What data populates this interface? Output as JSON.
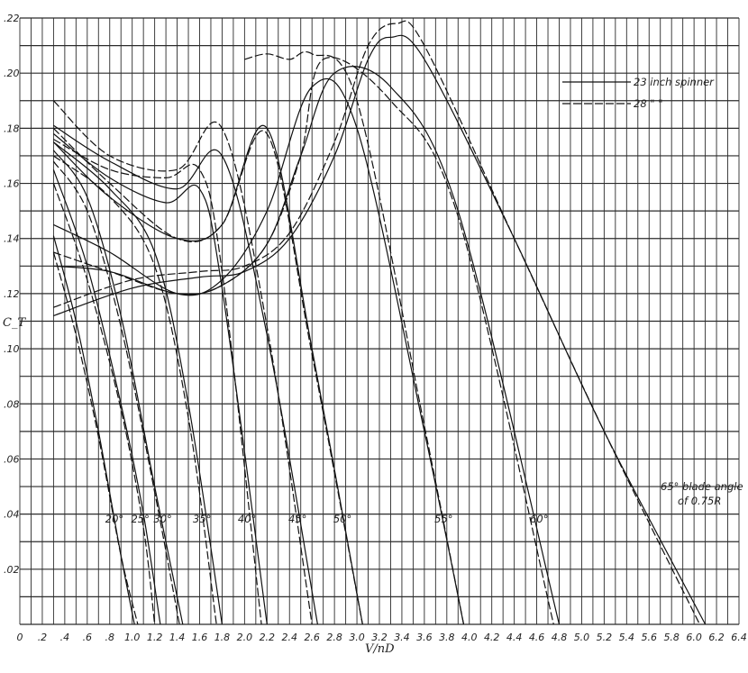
{
  "chart_data": {
    "type": "line",
    "xlabel": "V/nD",
    "ylabel": "C_T",
    "xlim": [
      0,
      6.4
    ],
    "ylim": [
      0,
      0.22
    ],
    "x_ticks": [
      "0",
      ".2",
      ".4",
      ".6",
      ".8",
      "1.0",
      "1.2",
      "1.4",
      "1.6",
      "1.8",
      "2.0",
      "2.2",
      "2.4",
      "2.6",
      "2.8",
      "3.0",
      "3.2",
      "3.4",
      "3.6",
      "3.8",
      "4.0",
      "4.2",
      "4.4",
      "4.6",
      "4.8",
      "5.0",
      "5.2",
      "5.4",
      "5.6",
      "5.8",
      "6.0",
      "6.2",
      "6.4"
    ],
    "y_ticks": [
      ".02",
      ".04",
      ".06",
      ".08",
      ".10",
      ".12",
      ".14",
      ".16",
      ".18",
      ".20",
      ".22"
    ],
    "y_tick_values": [
      0.02,
      0.04,
      0.06,
      0.08,
      0.1,
      0.12,
      0.14,
      0.16,
      0.18,
      0.2,
      0.22
    ],
    "grid": true,
    "legend": [
      {
        "label": "23 inch spinner",
        "style": "solid"
      },
      {
        "label": "28  \"   \"",
        "style": "dashed"
      }
    ],
    "legend_position": "top-right",
    "annotations": {
      "blade_angle_note": "65° blade angle",
      "blade_angle_note2": "of 0.75R"
    },
    "series": [
      {
        "name": "20°",
        "spinner": "23 inch",
        "style": "solid",
        "x": [
          0.3,
          0.5,
          0.7,
          0.9,
          1.02
        ],
        "y": [
          0.141,
          0.11,
          0.07,
          0.025,
          0.0
        ]
      },
      {
        "name": "20°",
        "spinner": "28 inch",
        "style": "dashed",
        "x": [
          0.3,
          0.5,
          0.7,
          0.9,
          1.05
        ],
        "y": [
          0.135,
          0.105,
          0.068,
          0.025,
          0.0
        ]
      },
      {
        "name": "25°",
        "spinner": "23 inch",
        "style": "solid",
        "x": [
          0.3,
          0.6,
          0.9,
          1.1,
          1.25
        ],
        "y": [
          0.165,
          0.13,
          0.08,
          0.04,
          0.0
        ]
      },
      {
        "name": "25°",
        "spinner": "28 inch",
        "style": "dashed",
        "x": [
          0.3,
          0.6,
          0.9,
          1.1,
          1.2
        ],
        "y": [
          0.16,
          0.125,
          0.078,
          0.035,
          0.0
        ]
      },
      {
        "name": "30°",
        "spinner": "23 inch",
        "style": "solid",
        "x": [
          0.3,
          0.6,
          0.9,
          1.2,
          1.45
        ],
        "y": [
          0.172,
          0.155,
          0.112,
          0.05,
          0.0
        ]
      },
      {
        "name": "30°",
        "spinner": "28 inch",
        "style": "dashed",
        "x": [
          0.3,
          0.6,
          0.9,
          1.2,
          1.42
        ],
        "y": [
          0.168,
          0.15,
          0.108,
          0.048,
          0.0
        ]
      },
      {
        "name": "35°",
        "spinner": "23 inch",
        "style": "solid",
        "x": [
          0.3,
          0.8,
          1.2,
          1.5,
          1.8
        ],
        "y": [
          0.175,
          0.158,
          0.135,
          0.08,
          0.0
        ]
      },
      {
        "name": "35°",
        "spinner": "28 inch",
        "style": "dashed",
        "x": [
          0.3,
          0.8,
          1.2,
          1.5,
          1.75
        ],
        "y": [
          0.17,
          0.155,
          0.13,
          0.075,
          0.0
        ]
      },
      {
        "name": "40°",
        "spinner": "23 inch",
        "style": "solid",
        "x": [
          0.3,
          0.8,
          1.3,
          1.6,
          1.8,
          2.2
        ],
        "y": [
          0.178,
          0.162,
          0.153,
          0.158,
          0.122,
          0.0
        ]
      },
      {
        "name": "40°",
        "spinner": "28 inch",
        "style": "dashed",
        "x": [
          0.3,
          0.8,
          1.3,
          1.6,
          1.8,
          2.15
        ],
        "y": [
          0.176,
          0.165,
          0.162,
          0.165,
          0.128,
          0.0
        ]
      },
      {
        "name": "45°",
        "spinner": "23 inch",
        "style": "solid",
        "x": [
          0.3,
          0.8,
          1.4,
          1.8,
          2.2,
          2.65
        ],
        "y": [
          0.181,
          0.168,
          0.158,
          0.17,
          0.105,
          0.0
        ]
      },
      {
        "name": "45°",
        "spinner": "28 inch",
        "style": "dashed",
        "x": [
          0.3,
          0.8,
          1.4,
          1.8,
          2.2,
          2.6
        ],
        "y": [
          0.19,
          0.17,
          0.165,
          0.18,
          0.108,
          0.0
        ]
      },
      {
        "name": "50°",
        "spinner": "23 inch",
        "style": "solid",
        "x": [
          0.3,
          0.8,
          1.4,
          1.8,
          2.2,
          2.6,
          3.05
        ],
        "y": [
          0.175,
          0.155,
          0.14,
          0.145,
          0.18,
          0.1,
          0.0
        ]
      },
      {
        "name": "50°",
        "spinner": "28 inch",
        "style": "dashed",
        "x": [
          0.3,
          0.8,
          1.4,
          1.8,
          2.2,
          2.6,
          3.05
        ],
        "y": [
          0.18,
          0.16,
          0.14,
          0.145,
          0.178,
          0.098,
          0.0
        ]
      },
      {
        "name": "55°",
        "spinner": "23 inch",
        "style": "solid",
        "x": [
          0.3,
          0.8,
          1.4,
          1.8,
          2.2,
          2.6,
          3.0,
          3.6,
          3.95
        ],
        "y": [
          0.145,
          0.135,
          0.12,
          0.125,
          0.15,
          0.195,
          0.18,
          0.07,
          0.0
        ]
      },
      {
        "name": "55°",
        "spinner": "28 inch",
        "style": "dashed",
        "x": [
          2.0,
          2.2,
          2.4,
          2.6,
          3.0,
          3.6,
          3.95
        ],
        "y": [
          0.205,
          0.207,
          0.205,
          0.207,
          0.19,
          0.072,
          0.0
        ]
      },
      {
        "name": "60°",
        "spinner": "23 inch",
        "style": "solid",
        "x": [
          0.3,
          0.8,
          1.4,
          1.8,
          2.2,
          2.5,
          2.8,
          3.3,
          3.9,
          4.8
        ],
        "y": [
          0.13,
          0.128,
          0.12,
          0.123,
          0.138,
          0.17,
          0.2,
          0.195,
          0.15,
          0.0
        ]
      },
      {
        "name": "60°",
        "spinner": "28 inch",
        "style": "dashed",
        "x": [
          0.3,
          0.8,
          1.4,
          1.8,
          2.2,
          2.5,
          2.7,
          3.3,
          3.9,
          4.75
        ],
        "y": [
          0.135,
          0.128,
          0.12,
          0.123,
          0.138,
          0.17,
          0.205,
          0.19,
          0.148,
          0.0
        ]
      },
      {
        "name": "65°",
        "spinner": "23 inch",
        "style": "solid",
        "x": [
          0.3,
          1.0,
          1.6,
          2.0,
          2.4,
          2.8,
          3.1,
          3.3,
          3.6,
          4.4,
          5.2,
          6.1
        ],
        "y": [
          0.112,
          0.122,
          0.126,
          0.128,
          0.14,
          0.17,
          0.205,
          0.213,
          0.205,
          0.14,
          0.07,
          0.0
        ]
      },
      {
        "name": "65°",
        "spinner": "28 inch",
        "style": "dashed",
        "x": [
          0.3,
          1.0,
          1.6,
          2.0,
          2.4,
          2.8,
          3.1,
          3.35,
          3.6,
          4.4,
          5.2,
          6.05
        ],
        "y": [
          0.115,
          0.125,
          0.128,
          0.13,
          0.142,
          0.175,
          0.21,
          0.218,
          0.21,
          0.14,
          0.07,
          0.0
        ]
      }
    ]
  }
}
